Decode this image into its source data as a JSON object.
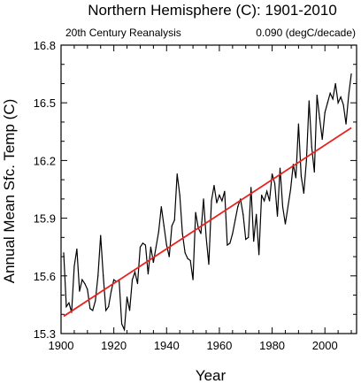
{
  "chart_data": {
    "type": "line",
    "title": "Northern Hemisphere (C): 1901-2010",
    "subtitle_left": "20th Century Reanalysis",
    "subtitle_right": "0.090 (degC/decade)",
    "xlabel": "Year",
    "ylabel": "Annual Mean Sfc. Temp (C)",
    "xlim": [
      1900,
      2012
    ],
    "ylim": [
      15.3,
      16.8
    ],
    "x_ticks": [
      1900,
      1920,
      1940,
      1960,
      1980,
      2000
    ],
    "y_ticks": [
      15.3,
      15.6,
      15.9,
      16.2,
      16.5,
      16.8
    ],
    "grid": false,
    "colors": {
      "series": "#000000",
      "trend": "#e8231e"
    },
    "series": [
      {
        "x": [
          1901,
          1902,
          1903,
          1904,
          1905,
          1906,
          1907,
          1908,
          1909,
          1910,
          1911,
          1912,
          1913,
          1914,
          1915,
          1916,
          1917,
          1918,
          1919,
          1920,
          1921,
          1922,
          1923,
          1924,
          1925,
          1926,
          1927,
          1928,
          1929,
          1930,
          1931,
          1932,
          1933,
          1934,
          1935,
          1936,
          1937,
          1938,
          1939,
          1940,
          1941,
          1942,
          1943,
          1944,
          1945,
          1946,
          1947,
          1948,
          1949,
          1950,
          1951,
          1952,
          1953,
          1954,
          1955,
          1956,
          1957,
          1958,
          1959,
          1960,
          1961,
          1962,
          1963,
          1964,
          1965,
          1966,
          1967,
          1968,
          1969,
          1970,
          1971,
          1972,
          1973,
          1974,
          1975,
          1976,
          1977,
          1978,
          1979,
          1980,
          1981,
          1982,
          1983,
          1984,
          1985,
          1986,
          1987,
          1988,
          1989,
          1990,
          1991,
          1992,
          1993,
          1994,
          1995,
          1996,
          1997,
          1998,
          1999,
          2000,
          2001,
          2002,
          2003,
          2004,
          2005,
          2006,
          2007,
          2008,
          2009,
          2010
        ],
        "values": [
          15.72,
          15.44,
          15.46,
          15.41,
          15.65,
          15.74,
          15.52,
          15.58,
          15.56,
          15.53,
          15.43,
          15.42,
          15.47,
          15.6,
          15.81,
          15.6,
          15.42,
          15.44,
          15.52,
          15.58,
          15.57,
          15.58,
          15.35,
          15.32,
          15.49,
          15.42,
          15.58,
          15.62,
          15.56,
          15.75,
          15.77,
          15.76,
          15.61,
          15.75,
          15.67,
          15.75,
          15.83,
          15.96,
          15.86,
          15.76,
          15.7,
          15.86,
          15.89,
          16.13,
          16.02,
          15.82,
          15.72,
          15.69,
          15.68,
          15.58,
          15.93,
          15.85,
          15.82,
          16.0,
          15.8,
          15.66,
          15.99,
          16.07,
          15.98,
          16.02,
          15.99,
          16.04,
          15.76,
          15.77,
          15.82,
          15.89,
          15.96,
          16.0,
          15.92,
          15.79,
          15.8,
          16.06,
          15.78,
          15.92,
          15.71,
          16.02,
          15.99,
          16.04,
          15.99,
          16.13,
          16.08,
          15.91,
          16.16,
          15.96,
          15.87,
          15.96,
          16.05,
          16.18,
          16.11,
          16.39,
          16.12,
          16.03,
          16.2,
          16.51,
          16.27,
          16.14,
          16.54,
          16.42,
          16.31,
          16.45,
          16.5,
          16.55,
          16.52,
          16.6,
          16.5,
          16.53,
          16.49,
          16.39,
          16.54,
          16.65
        ]
      }
    ],
    "trend": {
      "x": [
        1901,
        2010
      ],
      "values": [
        15.39,
        16.37
      ]
    }
  }
}
